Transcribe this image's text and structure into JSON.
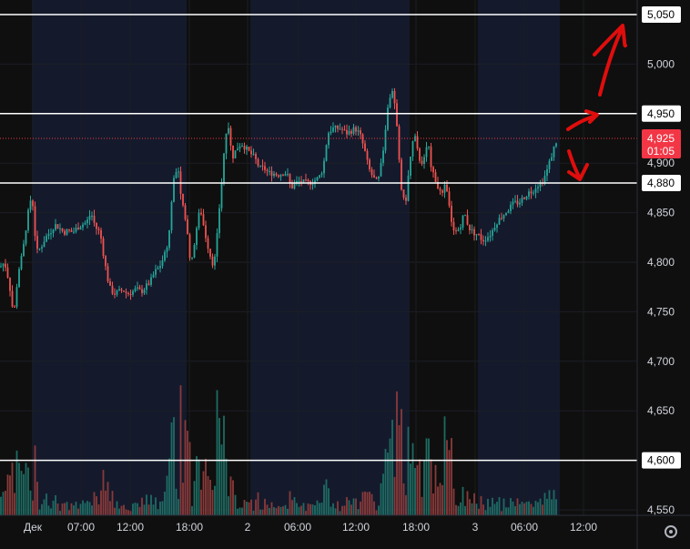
{
  "chart_data": {
    "type": "candlestick",
    "y_ticks": [
      4550,
      4600,
      4650,
      4700,
      4750,
      4800,
      4850,
      4900,
      4950,
      5000,
      5050
    ],
    "y_tick_labels": [
      "4,550",
      "4,600",
      "4,650",
      "4,700",
      "4,750",
      "4,800",
      "4,850",
      "4,900",
      "4,950",
      "5,000",
      "5,050"
    ],
    "ylim": [
      4535,
      5060
    ],
    "x_tick_labels": [
      "Дек",
      "07:00",
      "12:00",
      "18:00",
      "2",
      "06:00",
      "12:00",
      "18:00",
      "3",
      "06:00",
      "12:00"
    ],
    "horizontal_levels": [
      {
        "value": 5050,
        "label": "5,050"
      },
      {
        "value": 4950,
        "label": "4,950"
      },
      {
        "value": 4880,
        "label": "4,880"
      },
      {
        "value": 4600,
        "label": "4,600"
      }
    ],
    "last_price": {
      "value": 4925,
      "label": "4,925",
      "countdown": "01:05"
    },
    "colors": {
      "up": "#26a69a",
      "down": "#ef5350",
      "volume_up": "#1f6b63",
      "volume_down": "#8a3a3a",
      "level_line": "#ffffff",
      "last_price": "#f23645",
      "session_shade": "#141a2c",
      "annotation": "#e00d0d"
    },
    "close_path": [
      [
        0,
        4795
      ],
      [
        5,
        4800
      ],
      [
        10,
        4780
      ],
      [
        15,
        4745
      ],
      [
        20,
        4790
      ],
      [
        25,
        4810
      ],
      [
        30,
        4845
      ],
      [
        35,
        4870
      ],
      [
        40,
        4810
      ],
      [
        45,
        4815
      ],
      [
        50,
        4825
      ],
      [
        55,
        4830
      ],
      [
        60,
        4838
      ],
      [
        65,
        4835
      ],
      [
        70,
        4830
      ],
      [
        75,
        4832
      ],
      [
        80,
        4830
      ],
      [
        85,
        4835
      ],
      [
        90,
        4838
      ],
      [
        95,
        4840
      ],
      [
        100,
        4850
      ],
      [
        105,
        4835
      ],
      [
        110,
        4830
      ],
      [
        115,
        4800
      ],
      [
        120,
        4775
      ],
      [
        125,
        4768
      ],
      [
        130,
        4770
      ],
      [
        135,
        4772
      ],
      [
        140,
        4768
      ],
      [
        145,
        4770
      ],
      [
        150,
        4773
      ],
      [
        155,
        4770
      ],
      [
        160,
        4775
      ],
      [
        165,
        4780
      ],
      [
        170,
        4790
      ],
      [
        175,
        4795
      ],
      [
        180,
        4805
      ],
      [
        185,
        4820
      ],
      [
        190,
        4880
      ],
      [
        195,
        4900
      ],
      [
        200,
        4860
      ],
      [
        205,
        4835
      ],
      [
        210,
        4795
      ],
      [
        215,
        4830
      ],
      [
        220,
        4855
      ],
      [
        225,
        4830
      ],
      [
        230,
        4810
      ],
      [
        235,
        4795
      ],
      [
        240,
        4840
      ],
      [
        245,
        4900
      ],
      [
        250,
        4945
      ],
      [
        255,
        4905
      ],
      [
        260,
        4915
      ],
      [
        265,
        4920
      ],
      [
        270,
        4915
      ],
      [
        275,
        4910
      ],
      [
        280,
        4905
      ],
      [
        285,
        4895
      ],
      [
        290,
        4895
      ],
      [
        295,
        4890
      ],
      [
        300,
        4890
      ],
      [
        305,
        4888
      ],
      [
        310,
        4890
      ],
      [
        315,
        4890
      ],
      [
        320,
        4875
      ],
      [
        325,
        4880
      ],
      [
        330,
        4882
      ],
      [
        335,
        4880
      ],
      [
        340,
        4880
      ],
      [
        345,
        4882
      ],
      [
        350,
        4885
      ],
      [
        355,
        4895
      ],
      [
        360,
        4930
      ],
      [
        365,
        4935
      ],
      [
        370,
        4935
      ],
      [
        375,
        4935
      ],
      [
        380,
        4930
      ],
      [
        385,
        4932
      ],
      [
        390,
        4935
      ],
      [
        395,
        4930
      ],
      [
        400,
        4915
      ],
      [
        405,
        4895
      ],
      [
        410,
        4885
      ],
      [
        415,
        4880
      ],
      [
        420,
        4905
      ],
      [
        425,
        4950
      ],
      [
        430,
        4975
      ],
      [
        435,
        4950
      ],
      [
        440,
        4880
      ],
      [
        445,
        4855
      ],
      [
        450,
        4900
      ],
      [
        455,
        4930
      ],
      [
        460,
        4905
      ],
      [
        465,
        4900
      ],
      [
        470,
        4920
      ],
      [
        475,
        4890
      ],
      [
        480,
        4880
      ],
      [
        485,
        4865
      ],
      [
        490,
        4880
      ],
      [
        495,
        4845
      ],
      [
        500,
        4830
      ],
      [
        505,
        4835
      ],
      [
        510,
        4850
      ],
      [
        515,
        4835
      ],
      [
        520,
        4830
      ],
      [
        525,
        4828
      ],
      [
        530,
        4822
      ],
      [
        535,
        4825
      ],
      [
        540,
        4830
      ],
      [
        545,
        4840
      ],
      [
        550,
        4845
      ],
      [
        555,
        4850
      ],
      [
        560,
        4855
      ],
      [
        565,
        4860
      ],
      [
        570,
        4860
      ],
      [
        575,
        4865
      ],
      [
        580,
        4870
      ],
      [
        585,
        4872
      ],
      [
        590,
        4878
      ],
      [
        595,
        4880
      ],
      [
        600,
        4890
      ],
      [
        605,
        4905
      ],
      [
        610,
        4920
      ],
      [
        613,
        4925
      ]
    ],
    "sessions": [
      [
        35,
        205
      ],
      [
        275,
        450
      ],
      [
        525,
        615
      ]
    ],
    "x_tick_positions": [
      36,
      89,
      143,
      208,
      272,
      327,
      391,
      457,
      522,
      576,
      641
    ]
  }
}
